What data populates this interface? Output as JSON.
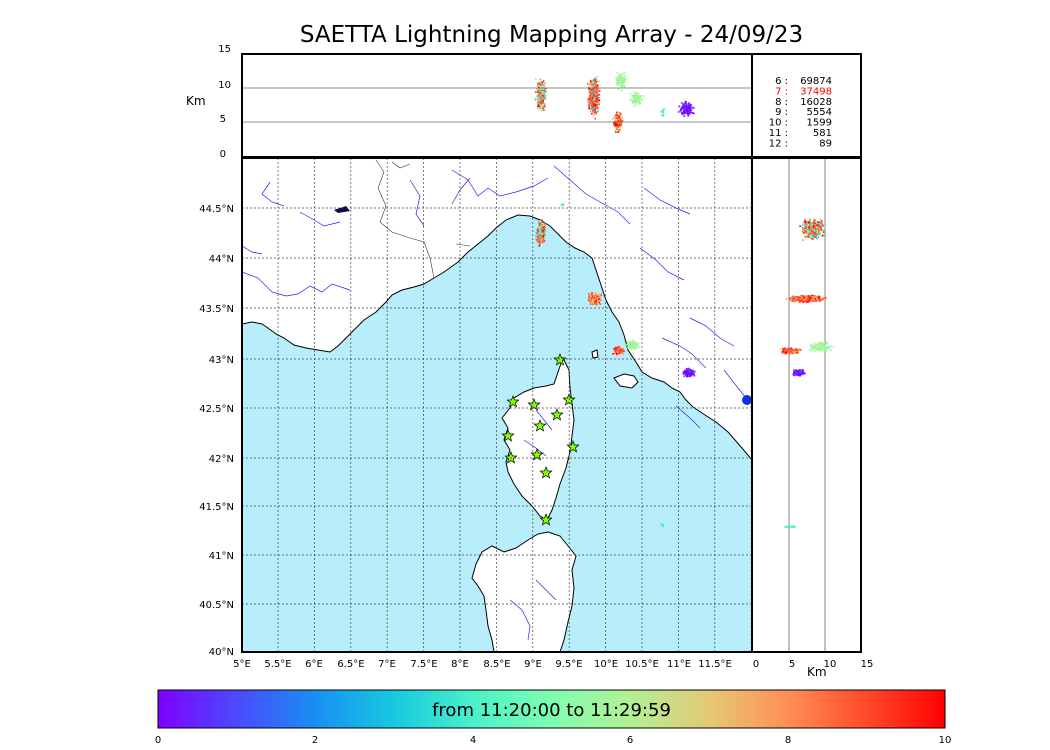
{
  "title": "SAETTA Lightning Mapping Array - 24/09/23",
  "units": {
    "km_top": "Km",
    "km_side": "Km"
  },
  "alt_axis_ticks": [
    "15",
    "10",
    "5",
    "0"
  ],
  "side_axis_ticks": [
    "0",
    "5",
    "10",
    "15"
  ],
  "lat_ticks": [
    "44.5°N",
    "44°N",
    "43.5°N",
    "43°N",
    "42.5°N",
    "42°N",
    "41.5°N",
    "41°N",
    "40.5°N",
    "40°N"
  ],
  "lon_ticks": [
    "5°E",
    "5.5°E",
    "6°E",
    "6.5°E",
    "7°E",
    "7.5°E",
    "8°E",
    "8.5°E",
    "9°E",
    "9.5°E",
    "10°E",
    "10.5°E",
    "11°E",
    "11.5°E"
  ],
  "counts": [
    {
      "label": "6 :",
      "value": "69874",
      "color": "#000000"
    },
    {
      "label": "7 :",
      "value": "37498",
      "color": "#ff0000"
    },
    {
      "label": "8 :",
      "value": "16028",
      "color": "#000000"
    },
    {
      "label": "9 :",
      "value": "5554",
      "color": "#000000"
    },
    {
      "label": "10 :",
      "value": "1599",
      "color": "#000000"
    },
    {
      "label": "11 :",
      "value": "581",
      "color": "#000000"
    },
    {
      "label": "12 :",
      "value": "89",
      "color": "#000000"
    }
  ],
  "colorbar": {
    "label": "from 11:20:00 to 11:29:59",
    "ticks": [
      "0",
      "2",
      "4",
      "6",
      "8",
      "10"
    ],
    "colors": [
      "#7f00ff",
      "#4c4afd",
      "#198ff3",
      "#17c9e1",
      "#4bf0c9",
      "#7ffeb0",
      "#b2f094",
      "#e5c975",
      "#ff8f55",
      "#ff4a2b",
      "#ff0000"
    ]
  },
  "map_colors": {
    "sea": "#b8eefc",
    "land": "#ffffff",
    "river": "#2222ee",
    "grid": "#444444"
  },
  "stations_count": 12
}
